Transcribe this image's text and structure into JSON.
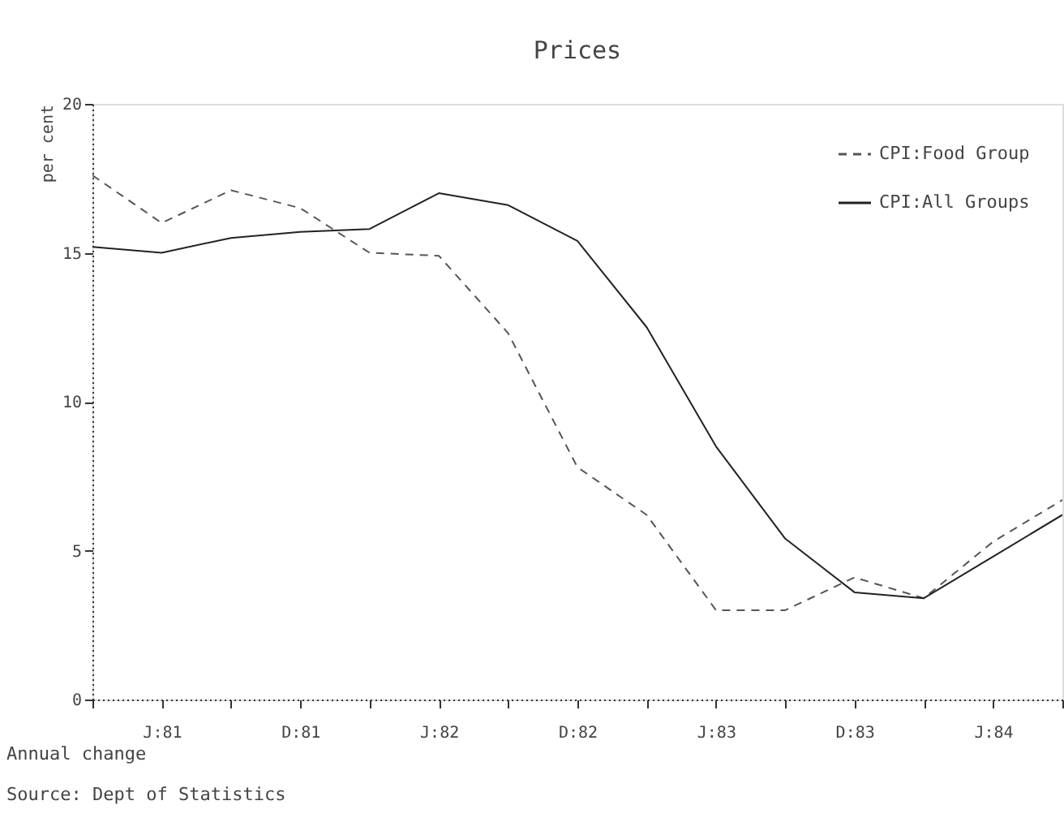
{
  "chart_data": {
    "type": "line",
    "title": "Prices",
    "ylabel": "per cent",
    "categories": [
      null,
      "J:81",
      null,
      "D:81",
      null,
      "J:82",
      null,
      "D:82",
      null,
      "J:83",
      null,
      "D:83",
      null,
      "J:84",
      null
    ],
    "ylim": [
      0,
      20
    ],
    "yticks": [
      0,
      5,
      10,
      15,
      20
    ],
    "grid": false,
    "legend": "top right",
    "series": [
      {
        "name": "CPI:Food Group",
        "color": "#555555",
        "line_style": "dashed",
        "values": [
          17.6,
          16.0,
          17.1,
          16.5,
          15.0,
          14.9,
          12.3,
          7.8,
          6.2,
          3.0,
          3.0,
          4.1,
          3.4,
          5.3,
          6.7
        ]
      },
      {
        "name": "CPI:All Groups",
        "color": "#222222",
        "line_style": "solid",
        "values": [
          15.2,
          15.0,
          15.5,
          15.7,
          15.8,
          17.0,
          16.6,
          15.4,
          12.5,
          8.5,
          5.4,
          3.6,
          3.4,
          4.8,
          6.2
        ]
      }
    ],
    "annotations": [
      "Annual change",
      "Source: Dept of Statistics"
    ]
  }
}
